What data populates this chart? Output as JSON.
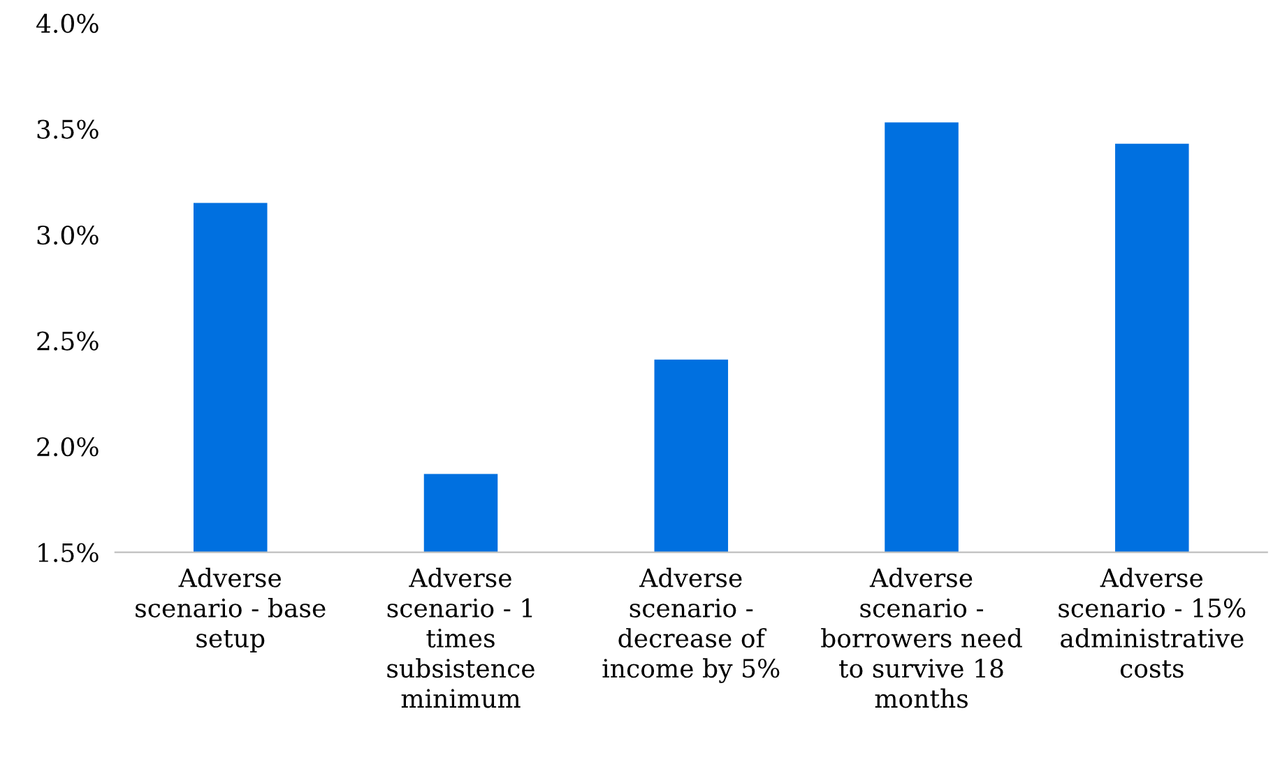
{
  "chart_data": {
    "type": "bar",
    "categories": [
      "Adverse\nscenario - base\nsetup",
      "Adverse\nscenario - 1\ntimes\nsubsistence\nminimum",
      "Adverse\nscenario -\ndecrease of\nincome by 5%",
      "Adverse\nscenario -\nborrowers need\nto survive 18\nmonths",
      "Adverse\nscenario - 15%\nadministrative\ncosts"
    ],
    "values": [
      3.15,
      1.87,
      2.41,
      3.53,
      3.43
    ],
    "color": "#0070e0",
    "ylim": [
      1.5,
      4.0
    ],
    "yticks": [
      {
        "value": 1.5,
        "label": "1.5%"
      },
      {
        "value": 2.0,
        "label": "2.0%"
      },
      {
        "value": 2.5,
        "label": "2.5%"
      },
      {
        "value": 3.0,
        "label": "3.0%"
      },
      {
        "value": 3.5,
        "label": "3.5%"
      },
      {
        "value": 4.0,
        "label": "4.0%"
      }
    ],
    "grid": false
  }
}
